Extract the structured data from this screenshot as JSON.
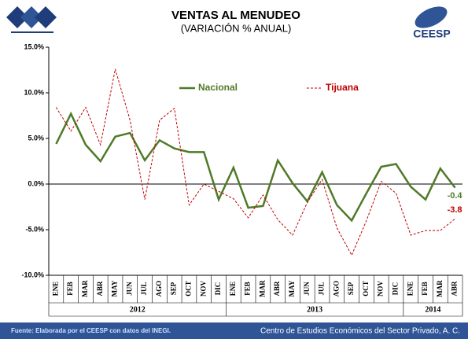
{
  "chart_data": {
    "type": "line",
    "title": "VENTAS AL MENUDEO",
    "subtitle": "(VARIACIÓN % ANUAL)",
    "logo": "CEESP",
    "source": "Fuente: Elaborada por el CEESP con datos del INEGI.",
    "footer": "Centro de Estudios Económicos del Sector Privado, A. C.",
    "categories": [
      "ENE",
      "FEB",
      "MAR",
      "ABR",
      "MAY",
      "JUN",
      "JUL",
      "AGO",
      "SEP",
      "OCT",
      "NOV",
      "DIC",
      "ENE",
      "FEB",
      "MAR",
      "ABR",
      "MAY",
      "JUN",
      "JUL",
      "AGO",
      "SEP",
      "OCT",
      "NOV",
      "DIC",
      "ENE",
      "FEB",
      "MAR",
      "ABR"
    ],
    "years": [
      "2012",
      "2013",
      "2014"
    ],
    "series": [
      {
        "name": "Nacional",
        "color": "#4f7a28",
        "values": [
          4.4,
          7.7,
          4.3,
          2.5,
          5.2,
          5.6,
          2.6,
          4.8,
          3.9,
          3.5,
          3.5,
          -1.7,
          1.8,
          -2.6,
          -2.4,
          2.6,
          0.1,
          -1.9,
          1.3,
          -2.3,
          -4.0,
          -1.0,
          1.9,
          2.2,
          -0.3,
          -1.7,
          1.7,
          -0.4
        ]
      },
      {
        "name": "Tijuana",
        "color": "#c00000",
        "values": [
          8.4,
          5.8,
          8.4,
          4.3,
          12.6,
          7.0,
          -1.7,
          7.0,
          8.3,
          -2.3,
          0.0,
          -0.8,
          -1.6,
          -3.7,
          -1.2,
          -3.9,
          -5.6,
          -2.0,
          0.5,
          -4.8,
          -7.8,
          -4.0,
          0.3,
          -1.0,
          -5.6,
          -5.1,
          -5.1,
          -3.8
        ]
      }
    ],
    "ylim": [
      -10,
      15
    ],
    "yticks": [
      {
        "value": -10,
        "label": "-10.0%"
      },
      {
        "value": -5,
        "label": "-5.0%"
      },
      {
        "value": 0,
        "label": "0.0%"
      },
      {
        "value": 5,
        "label": "5.0%"
      },
      {
        "value": 10,
        "label": "10.0%"
      },
      {
        "value": 15,
        "label": "15.0%"
      }
    ]
  }
}
